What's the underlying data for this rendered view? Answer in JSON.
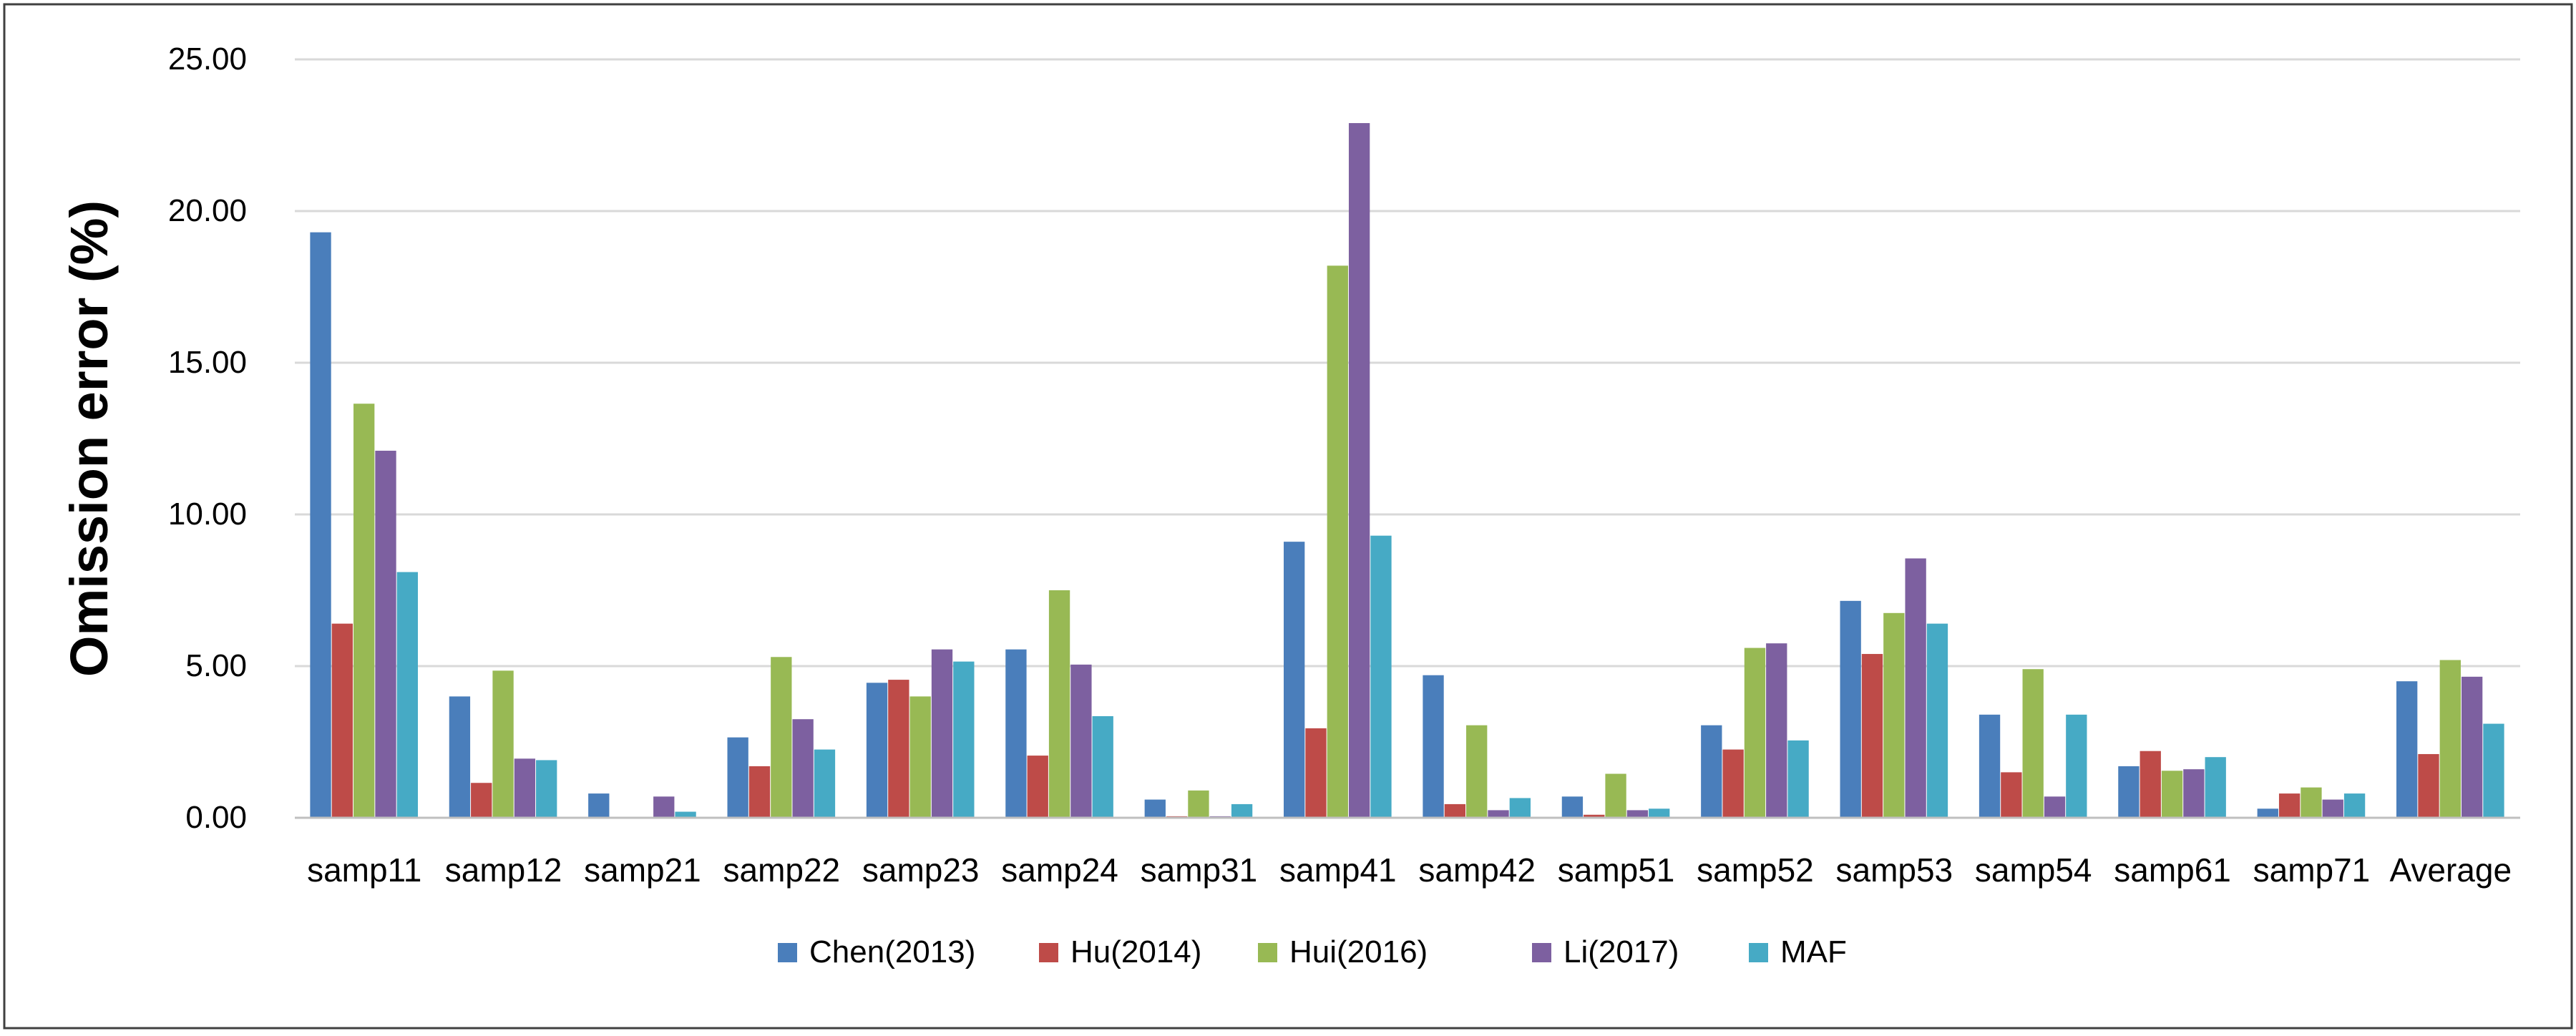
{
  "chart_data": {
    "type": "bar",
    "title": "",
    "xlabel": "",
    "ylabel": "Omission error (%)",
    "ylim": [
      0,
      25
    ],
    "yticks": [
      "0.00",
      "5.00",
      "10.00",
      "15.00",
      "20.00",
      "25.00"
    ],
    "grid": true,
    "legend_position": "bottom",
    "categories": [
      "samp11",
      "samp12",
      "samp21",
      "samp22",
      "samp23",
      "samp24",
      "samp31",
      "samp41",
      "samp42",
      "samp51",
      "samp52",
      "samp53",
      "samp54",
      "samp61",
      "samp71",
      "Average"
    ],
    "series": [
      {
        "name": "Chen(2013)",
        "color": "#4a7ebb",
        "values": [
          19.3,
          4.0,
          0.8,
          2.65,
          4.45,
          5.55,
          0.6,
          9.1,
          4.7,
          0.7,
          3.05,
          7.15,
          3.4,
          1.7,
          0.3,
          4.5
        ]
      },
      {
        "name": "Hu(2014)",
        "color": "#be4b48",
        "values": [
          6.4,
          1.15,
          0.0,
          1.7,
          4.55,
          2.05,
          0.05,
          2.95,
          0.45,
          0.1,
          2.25,
          5.4,
          1.5,
          2.2,
          0.8,
          2.1
        ]
      },
      {
        "name": "Hui(2016)",
        "color": "#98b954",
        "values": [
          13.65,
          4.85,
          0.0,
          5.3,
          4.0,
          7.5,
          0.9,
          18.2,
          3.05,
          1.45,
          5.6,
          6.75,
          4.9,
          1.55,
          1.0,
          5.2
        ]
      },
      {
        "name": "Li(2017)",
        "color": "#7d60a0",
        "values": [
          12.1,
          1.95,
          0.7,
          3.25,
          5.55,
          5.05,
          0.05,
          22.9,
          0.25,
          0.25,
          5.75,
          8.55,
          0.7,
          1.6,
          0.6,
          4.65
        ]
      },
      {
        "name": "MAF",
        "color": "#46aac5",
        "values": [
          8.1,
          1.9,
          0.2,
          2.25,
          5.15,
          3.35,
          0.45,
          9.3,
          0.65,
          0.3,
          2.55,
          6.4,
          3.4,
          2.0,
          0.8,
          3.1
        ]
      }
    ]
  }
}
